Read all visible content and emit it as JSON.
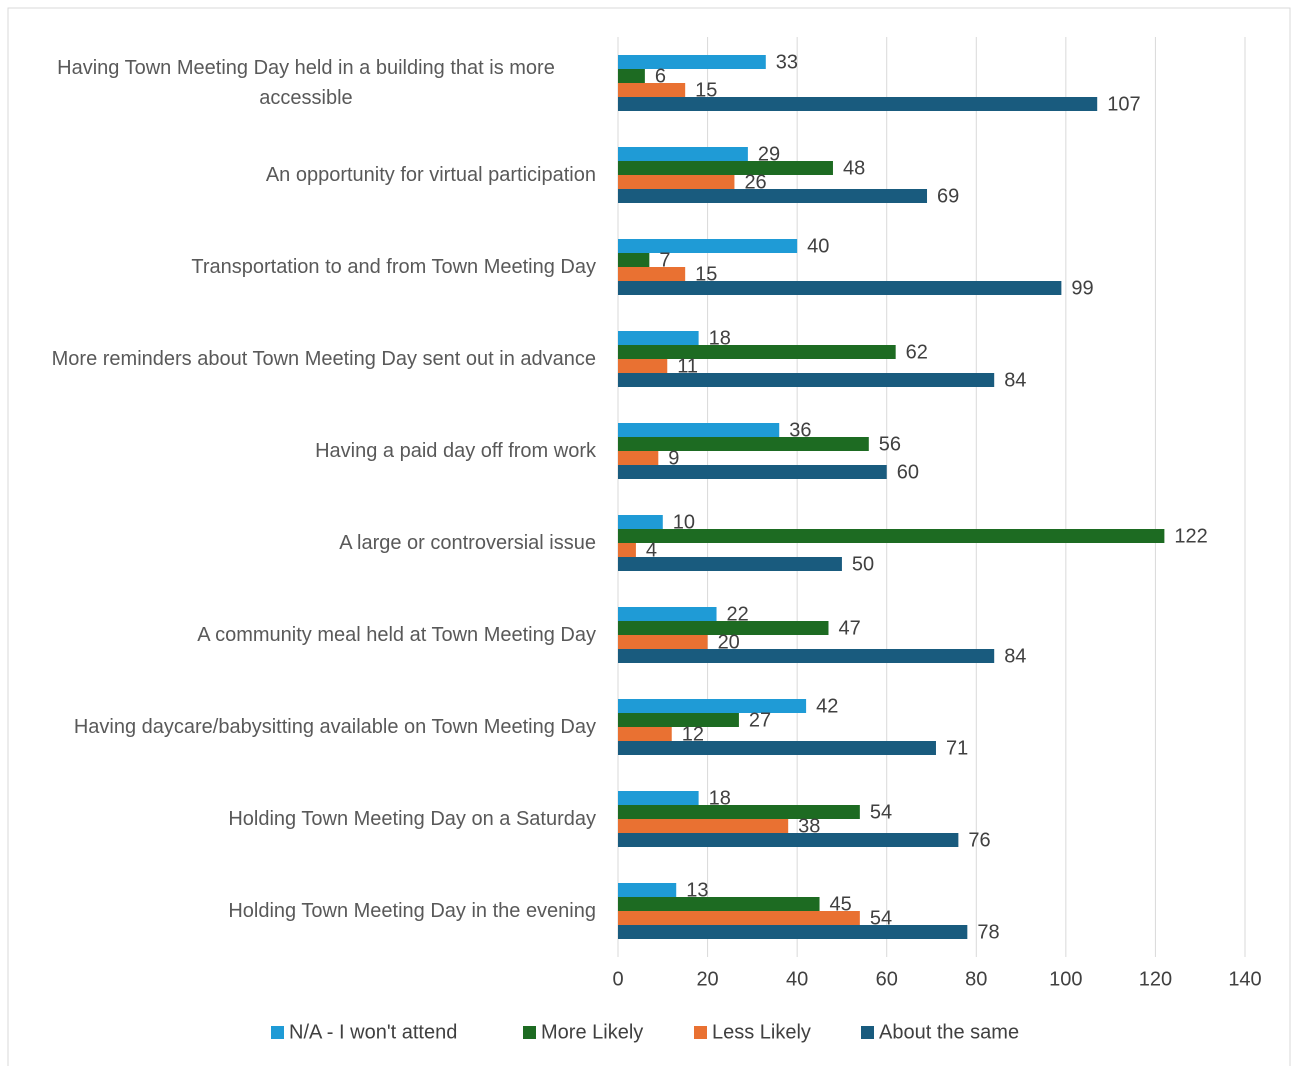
{
  "chart_data": {
    "type": "bar",
    "orientation": "horizontal",
    "categories": [
      "Having Town Meeting Day held in a building that is more accessible",
      "An opportunity for virtual participation",
      "Transportation to and from Town Meeting Day",
      "More reminders about Town Meeting Day sent out in advance",
      "Having a paid day off from work",
      "A large or controversial issue",
      "A community meal held at Town Meeting Day",
      "Having daycare/babysitting available on Town Meeting Day",
      "Holding Town Meeting Day on a Saturday",
      "Holding Town Meeting Day in the evening"
    ],
    "series": [
      {
        "name": "N/A - I won't attend",
        "color": "#1f9bd6",
        "values": [
          33,
          29,
          40,
          18,
          36,
          10,
          22,
          42,
          18,
          13
        ]
      },
      {
        "name": "More Likely",
        "color": "#1d6b22",
        "values": [
          6,
          48,
          7,
          62,
          56,
          122,
          47,
          27,
          54,
          45
        ]
      },
      {
        "name": "Less Likely",
        "color": "#e97132",
        "values": [
          15,
          26,
          15,
          11,
          9,
          4,
          20,
          12,
          38,
          54
        ]
      },
      {
        "name": "About the same",
        "color": "#195b7e",
        "values": [
          107,
          69,
          99,
          84,
          60,
          50,
          84,
          71,
          76,
          78
        ]
      }
    ],
    "xlim": [
      0,
      140
    ],
    "xticks": [
      0,
      20,
      40,
      60,
      80,
      100,
      120,
      140
    ],
    "grid": true,
    "legend": "bottom"
  }
}
